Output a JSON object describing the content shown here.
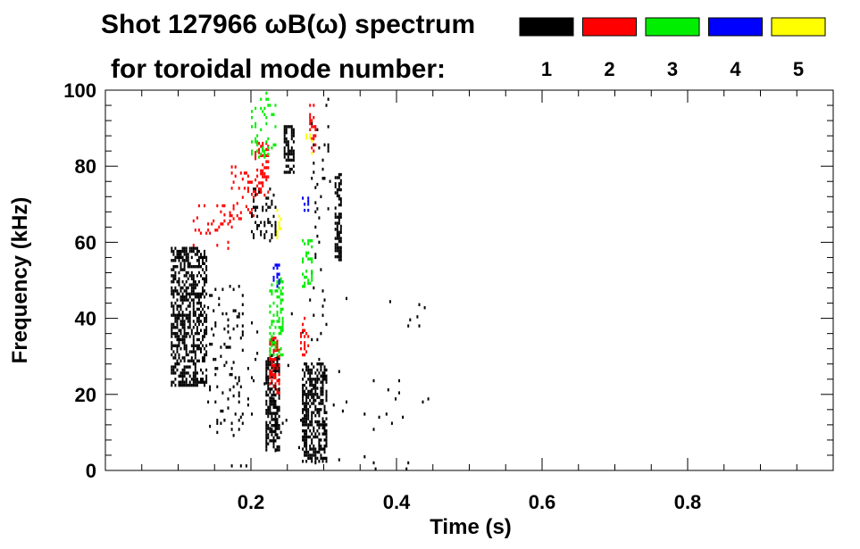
{
  "chart_data": {
    "type": "heatmap",
    "title_line1": "Shot 127966 ωB(ω) spectrum",
    "title_line2": "for toroidal mode number:",
    "xlabel": "Time (s)",
    "ylabel": "Frequency (kHz)",
    "xlim": [
      0.0,
      1.0
    ],
    "ylim": [
      0,
      100
    ],
    "x_ticks": [
      {
        "value": 0.2,
        "label": "0.2"
      },
      {
        "value": 0.4,
        "label": "0.4"
      },
      {
        "value": 0.6,
        "label": "0.6"
      },
      {
        "value": 0.8,
        "label": "0.8"
      }
    ],
    "y_ticks": [
      {
        "value": 0,
        "label": "0"
      },
      {
        "value": 20,
        "label": "20"
      },
      {
        "value": 40,
        "label": "40"
      },
      {
        "value": 60,
        "label": "60"
      },
      {
        "value": 80,
        "label": "80"
      },
      {
        "value": 100,
        "label": "100"
      }
    ],
    "legend": [
      {
        "label": "1",
        "color": "#000000"
      },
      {
        "label": "2",
        "color": "#ff0000"
      },
      {
        "label": "3",
        "color": "#00ee00"
      },
      {
        "label": "4",
        "color": "#0000ff"
      },
      {
        "label": "5",
        "color": "#ffff00"
      }
    ],
    "mode_regions": [
      {
        "mode": 1,
        "t": [
          0.09,
          0.14
        ],
        "f": [
          22,
          58
        ],
        "density": 0.55
      },
      {
        "mode": 1,
        "t": [
          0.14,
          0.19
        ],
        "f": [
          8,
          48
        ],
        "density": 0.08
      },
      {
        "mode": 1,
        "t": [
          0.2,
          0.235
        ],
        "f": [
          60,
          74
        ],
        "density": 0.25
      },
      {
        "mode": 1,
        "t": [
          0.22,
          0.24
        ],
        "f": [
          5,
          30
        ],
        "density": 0.6
      },
      {
        "mode": 1,
        "t": [
          0.245,
          0.26
        ],
        "f": [
          78,
          90
        ],
        "density": 0.5
      },
      {
        "mode": 1,
        "t": [
          0.27,
          0.305
        ],
        "f": [
          2,
          28
        ],
        "density": 0.55
      },
      {
        "mode": 1,
        "t": [
          0.315,
          0.325
        ],
        "f": [
          55,
          78
        ],
        "density": 0.6
      },
      {
        "mode": 1,
        "t": [
          0.28,
          0.31
        ],
        "f": [
          30,
          100
        ],
        "density": 0.05
      },
      {
        "mode": 1,
        "t": [
          0.16,
          0.45
        ],
        "f": [
          0,
          45
        ],
        "density": 0.012
      },
      {
        "mode": 2,
        "t": [
          0.12,
          0.18
        ],
        "f": [
          58,
          70
        ],
        "density": 0.12
      },
      {
        "mode": 2,
        "t": [
          0.17,
          0.21
        ],
        "f": [
          65,
          80
        ],
        "density": 0.12
      },
      {
        "mode": 2,
        "t": [
          0.205,
          0.225
        ],
        "f": [
          72,
          86
        ],
        "density": 0.3
      },
      {
        "mode": 2,
        "t": [
          0.225,
          0.24
        ],
        "f": [
          20,
          35
        ],
        "density": 0.5
      },
      {
        "mode": 2,
        "t": [
          0.265,
          0.28
        ],
        "f": [
          30,
          40
        ],
        "density": 0.2
      },
      {
        "mode": 2,
        "t": [
          0.28,
          0.29
        ],
        "f": [
          82,
          96
        ],
        "density": 0.3
      },
      {
        "mode": 3,
        "t": [
          0.2,
          0.235
        ],
        "f": [
          82,
          100
        ],
        "density": 0.15
      },
      {
        "mode": 3,
        "t": [
          0.225,
          0.245
        ],
        "f": [
          30,
          50
        ],
        "density": 0.3
      },
      {
        "mode": 3,
        "t": [
          0.27,
          0.285
        ],
        "f": [
          48,
          60
        ],
        "density": 0.25
      },
      {
        "mode": 4,
        "t": [
          0.23,
          0.24
        ],
        "f": [
          48,
          54
        ],
        "density": 0.3
      },
      {
        "mode": 4,
        "t": [
          0.27,
          0.28
        ],
        "f": [
          68,
          72
        ],
        "density": 0.3
      },
      {
        "mode": 5,
        "t": [
          0.235,
          0.245
        ],
        "f": [
          60,
          68
        ],
        "density": 0.25
      },
      {
        "mode": 5,
        "t": [
          0.275,
          0.285
        ],
        "f": [
          83,
          88
        ],
        "density": 0.25
      }
    ]
  }
}
